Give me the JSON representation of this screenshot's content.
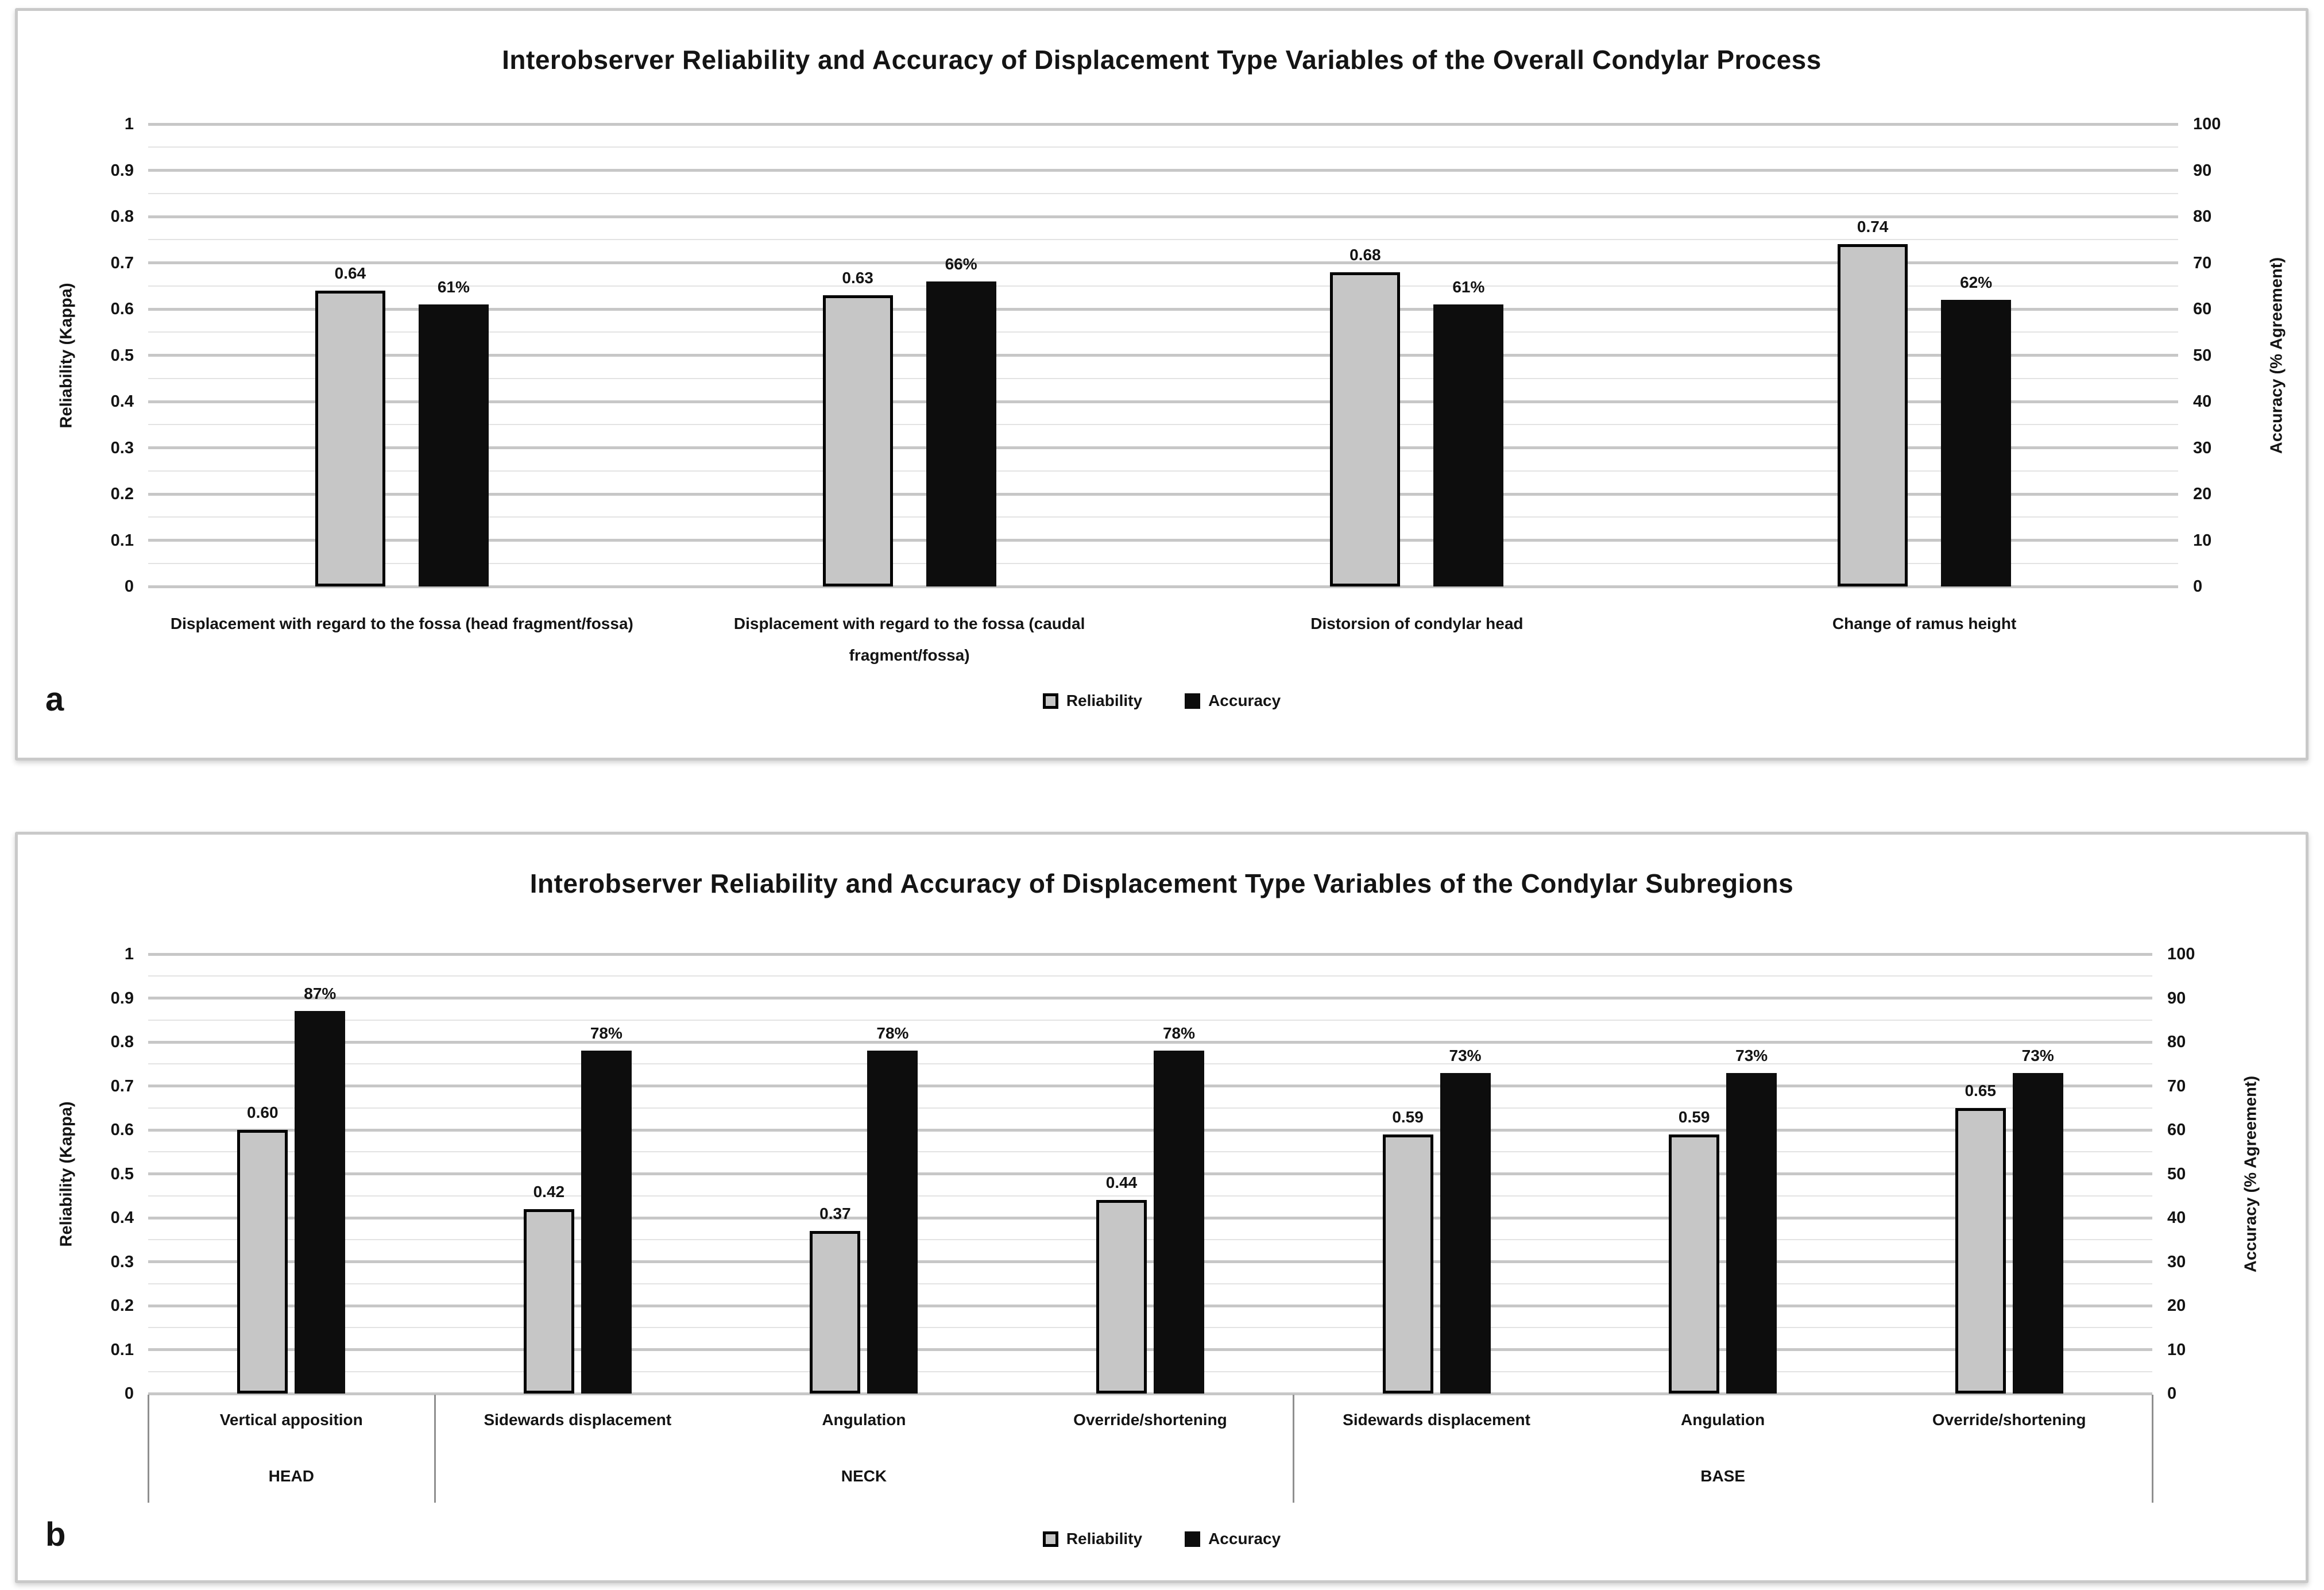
{
  "figure": {
    "panel_letters": [
      "a",
      "b"
    ],
    "colors": {
      "reliability_fill": "#c6c6c6",
      "reliability_border": "#000000",
      "accuracy_fill": "#0d0d0d",
      "gridline": "#c7c7c7",
      "gridline_minor": "#e3e3e3",
      "panel_border": "#c9c9c9",
      "text": "#141414",
      "background": "#ffffff"
    }
  },
  "chart_data": [
    {
      "type": "bar",
      "panel": "a",
      "title": "Interobserver Reliability and Accuracy of Displacement Type Variables of the Overall Condylar Process",
      "categories": [
        "Displacement with regard to the fossa (head fragment/fossa)",
        "Displacement with regard to the fossa (caudal fragment/fossa)",
        "Distorsion of condylar head",
        "Change of ramus height"
      ],
      "series": [
        {
          "name": "Reliability",
          "axis": "left",
          "values": [
            0.64,
            0.63,
            0.68,
            0.74
          ],
          "labels": [
            "0.64",
            "0.63",
            "0.68",
            "0.74"
          ]
        },
        {
          "name": "Accuracy",
          "axis": "right",
          "values": [
            61,
            66,
            61,
            62
          ],
          "labels": [
            "61%",
            "66%",
            "61%",
            "62%"
          ]
        }
      ],
      "ylabel_left": "Reliability (Kappa)",
      "ylabel_right": "Accuracy (% Agreement)",
      "ylim_left": [
        0,
        1
      ],
      "ylim_right": [
        0,
        100
      ],
      "yticks_left": [
        "1",
        "0.9",
        "0.8",
        "0.7",
        "0.6",
        "0.5",
        "0.4",
        "0.3",
        "0.2",
        "0.1",
        "0"
      ],
      "yticks_right": [
        "100",
        "90",
        "80",
        "70",
        "60",
        "50",
        "40",
        "30",
        "20",
        "10",
        "0"
      ],
      "grid": true,
      "legend_position": "bottom"
    },
    {
      "type": "bar",
      "panel": "b",
      "title": "Interobserver Reliability and Accuracy of Displacement Type Variables of the Condylar Subregions",
      "categories": [
        "Vertical apposition",
        "Sidewards displacement",
        "Angulation",
        "Override/shortening",
        "Sidewards displacement",
        "Angulation",
        "Override/shortening"
      ],
      "category_groups": [
        {
          "name": "HEAD",
          "start": 0,
          "end": 0
        },
        {
          "name": "NECK",
          "start": 1,
          "end": 3
        },
        {
          "name": "BASE",
          "start": 4,
          "end": 6
        }
      ],
      "series": [
        {
          "name": "Reliability",
          "axis": "left",
          "values": [
            0.6,
            0.42,
            0.37,
            0.44,
            0.59,
            0.59,
            0.65
          ],
          "labels": [
            "0.60",
            "0.42",
            "0.37",
            "0.44",
            "0.59",
            "0.59",
            "0.65"
          ]
        },
        {
          "name": "Accuracy",
          "axis": "right",
          "values": [
            87,
            78,
            78,
            78,
            73,
            73,
            73
          ],
          "labels": [
            "87%",
            "78%",
            "78%",
            "78%",
            "73%",
            "73%",
            "73%"
          ]
        }
      ],
      "ylabel_left": "Reliability (Kappa)",
      "ylabel_right": "Accuracy (% Agreement)",
      "ylim_left": [
        0,
        1
      ],
      "ylim_right": [
        0,
        100
      ],
      "yticks_left": [
        "1",
        "0.9",
        "0.8",
        "0.7",
        "0.6",
        "0.5",
        "0.4",
        "0.3",
        "0.2",
        "0.1",
        "0"
      ],
      "yticks_right": [
        "100",
        "90",
        "80",
        "70",
        "60",
        "50",
        "40",
        "30",
        "20",
        "10",
        "0"
      ],
      "grid": true,
      "legend_position": "bottom"
    }
  ]
}
